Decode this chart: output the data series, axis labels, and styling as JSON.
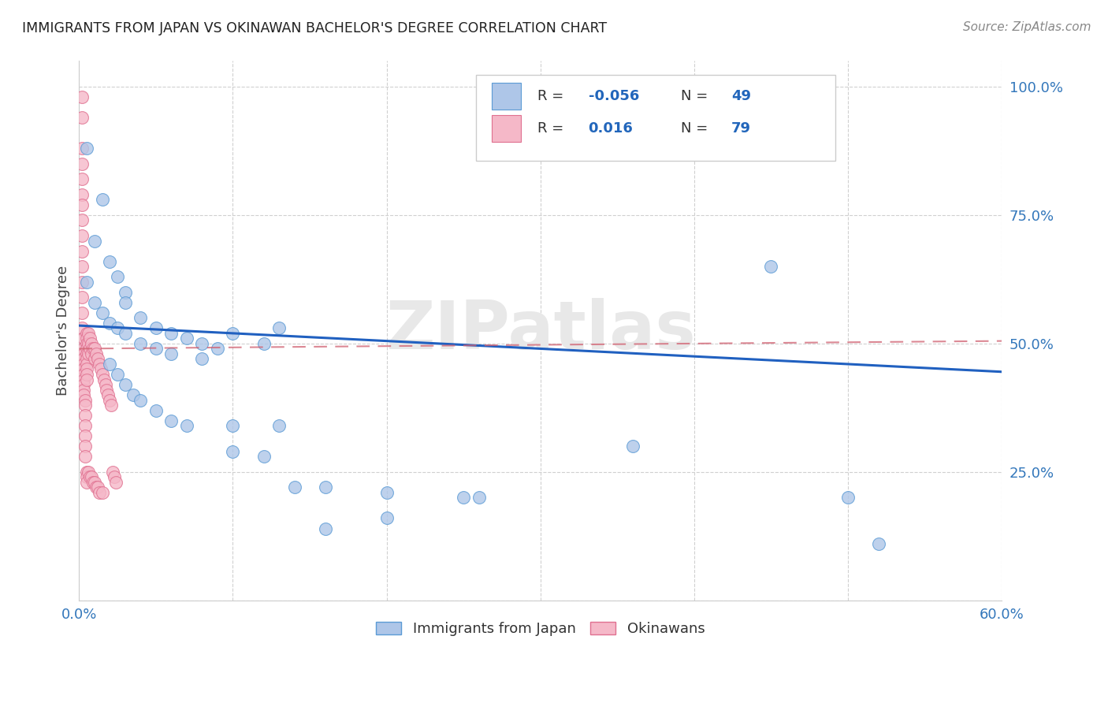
{
  "title": "IMMIGRANTS FROM JAPAN VS OKINAWAN BACHELOR'S DEGREE CORRELATION CHART",
  "source": "Source: ZipAtlas.com",
  "ylabel": "Bachelor's Degree",
  "xmin": 0.0,
  "xmax": 0.6,
  "ymin": 0.0,
  "ymax": 1.05,
  "blue_R": -0.056,
  "blue_N": 49,
  "pink_R": 0.016,
  "pink_N": 79,
  "blue_color": "#aec6e8",
  "pink_color": "#f5b8c8",
  "blue_edge_color": "#5b9bd5",
  "pink_edge_color": "#e07090",
  "blue_line_color": "#2060c0",
  "pink_line_color": "#d06070",
  "watermark": "ZIPatlas",
  "legend_label_blue": "Immigrants from Japan",
  "legend_label_pink": "Okinawans",
  "blue_scatter_x": [
    0.005,
    0.015,
    0.01,
    0.02,
    0.025,
    0.03,
    0.03,
    0.04,
    0.05,
    0.06,
    0.07,
    0.08,
    0.09,
    0.1,
    0.12,
    0.13,
    0.02,
    0.025,
    0.03,
    0.035,
    0.04,
    0.05,
    0.06,
    0.07,
    0.1,
    0.12,
    0.14,
    0.16,
    0.2,
    0.25,
    0.36,
    0.45,
    0.005,
    0.01,
    0.015,
    0.02,
    0.025,
    0.03,
    0.04,
    0.05,
    0.06,
    0.08,
    0.1,
    0.13,
    0.16,
    0.2,
    0.26,
    0.5,
    0.52
  ],
  "blue_scatter_y": [
    0.88,
    0.78,
    0.7,
    0.66,
    0.63,
    0.6,
    0.58,
    0.55,
    0.53,
    0.52,
    0.51,
    0.5,
    0.49,
    0.52,
    0.5,
    0.53,
    0.46,
    0.44,
    0.42,
    0.4,
    0.39,
    0.37,
    0.35,
    0.34,
    0.29,
    0.28,
    0.22,
    0.22,
    0.21,
    0.2,
    0.3,
    0.65,
    0.62,
    0.58,
    0.56,
    0.54,
    0.53,
    0.52,
    0.5,
    0.49,
    0.48,
    0.47,
    0.34,
    0.34,
    0.14,
    0.16,
    0.2,
    0.2,
    0.11
  ],
  "pink_scatter_x": [
    0.002,
    0.002,
    0.002,
    0.002,
    0.002,
    0.002,
    0.002,
    0.002,
    0.002,
    0.002,
    0.002,
    0.002,
    0.002,
    0.002,
    0.002,
    0.003,
    0.003,
    0.003,
    0.003,
    0.003,
    0.003,
    0.003,
    0.003,
    0.003,
    0.003,
    0.003,
    0.004,
    0.004,
    0.004,
    0.004,
    0.004,
    0.004,
    0.004,
    0.005,
    0.005,
    0.005,
    0.005,
    0.005,
    0.005,
    0.005,
    0.005,
    0.005,
    0.005,
    0.005,
    0.005,
    0.005,
    0.006,
    0.006,
    0.006,
    0.006,
    0.007,
    0.007,
    0.007,
    0.008,
    0.008,
    0.008,
    0.009,
    0.009,
    0.01,
    0.01,
    0.01,
    0.011,
    0.011,
    0.012,
    0.012,
    0.013,
    0.013,
    0.014,
    0.015,
    0.015,
    0.016,
    0.017,
    0.018,
    0.019,
    0.02,
    0.021,
    0.022,
    0.023,
    0.024
  ],
  "pink_scatter_y": [
    0.98,
    0.94,
    0.88,
    0.85,
    0.82,
    0.79,
    0.77,
    0.74,
    0.71,
    0.68,
    0.65,
    0.62,
    0.59,
    0.56,
    0.53,
    0.51,
    0.49,
    0.48,
    0.47,
    0.46,
    0.45,
    0.44,
    0.43,
    0.42,
    0.41,
    0.4,
    0.39,
    0.38,
    0.36,
    0.34,
    0.32,
    0.3,
    0.28,
    0.52,
    0.51,
    0.5,
    0.49,
    0.48,
    0.47,
    0.46,
    0.45,
    0.44,
    0.43,
    0.25,
    0.24,
    0.23,
    0.52,
    0.5,
    0.48,
    0.25,
    0.51,
    0.49,
    0.24,
    0.5,
    0.48,
    0.24,
    0.49,
    0.23,
    0.49,
    0.47,
    0.23,
    0.48,
    0.22,
    0.47,
    0.22,
    0.46,
    0.21,
    0.45,
    0.44,
    0.21,
    0.43,
    0.42,
    0.41,
    0.4,
    0.39,
    0.38,
    0.25,
    0.24,
    0.23
  ],
  "blue_line_x": [
    0.0,
    0.6
  ],
  "blue_line_y": [
    0.535,
    0.445
  ],
  "pink_line_x": [
    0.0,
    0.6
  ],
  "pink_line_y": [
    0.49,
    0.505
  ]
}
